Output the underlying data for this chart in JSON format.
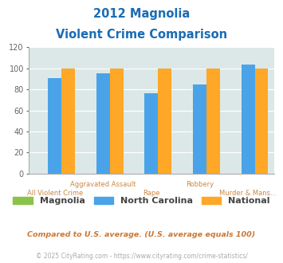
{
  "title_line1": "2012 Magnolia",
  "title_line2": "Violent Crime Comparison",
  "categories": [
    "All Violent Crime",
    "Aggravated Assault",
    "Rape",
    "Robbery",
    "Murder & Mans..."
  ],
  "series": {
    "Magnolia": [
      0,
      0,
      0,
      0,
      0
    ],
    "North Carolina": [
      91,
      95,
      76,
      85,
      104
    ],
    "National": [
      100,
      100,
      100,
      100,
      100
    ]
  },
  "colors": {
    "Magnolia": "#8bc34a",
    "North Carolina": "#4aa3e8",
    "National": "#ffa726"
  },
  "ylim": [
    0,
    120
  ],
  "yticks": [
    0,
    20,
    40,
    60,
    80,
    100,
    120
  ],
  "bg_color": "#dce8e8",
  "title_color": "#1a6cb5",
  "axis_label_color": "#cc8844",
  "footnote1": "Compared to U.S. average. (U.S. average equals 100)",
  "footnote2": "© 2025 CityRating.com - https://www.cityrating.com/crime-statistics/",
  "footnote1_color": "#cc7733",
  "footnote2_color": "#aaaaaa",
  "bar_width": 0.28
}
